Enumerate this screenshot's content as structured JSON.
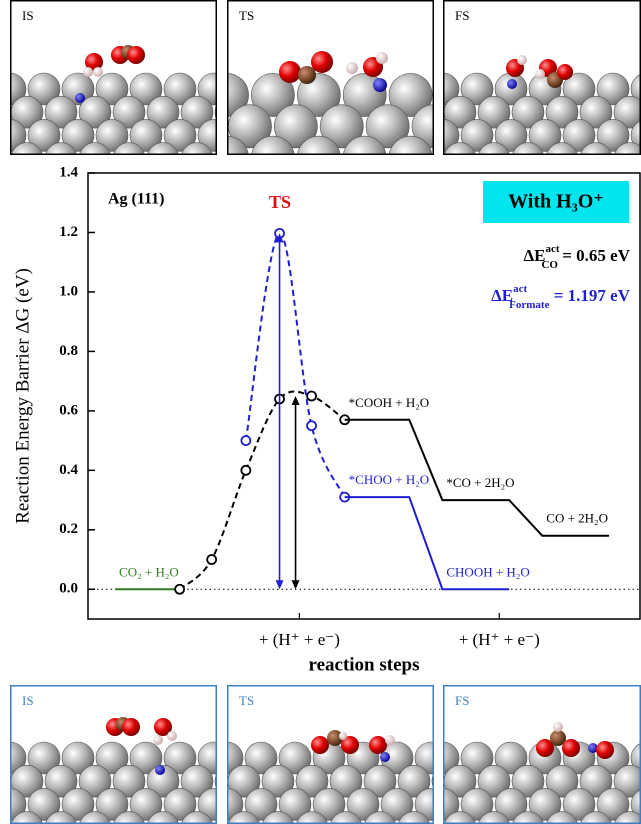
{
  "panels_top": {
    "labels": [
      "IS",
      "TS",
      "FS"
    ]
  },
  "panels_bottom": {
    "labels": [
      "IS",
      "TS",
      "FS"
    ]
  },
  "chart_data": {
    "type": "line",
    "xlabel": "reaction steps",
    "ylabel": "Reaction Energy Barrier ΔG (eV)",
    "xlim": [
      0,
      10
    ],
    "xticks": [
      {
        "value": 3.83,
        "label": "+ (H⁺ + e⁻)"
      },
      {
        "value": 7.45,
        "label": "+ (H⁺ + e⁻)"
      }
    ],
    "ylim": [
      -0.1,
      1.4
    ],
    "yticks": [
      {
        "value": 0,
        "label": "0.0"
      },
      {
        "value": 0.2,
        "label": "0.2"
      },
      {
        "value": 0.4,
        "label": "0.4"
      },
      {
        "value": 0.6,
        "label": "0.6"
      },
      {
        "value": 0.8,
        "label": "0.8"
      },
      {
        "value": 1,
        "label": "1.0"
      },
      {
        "value": 1.2,
        "label": "1.2"
      },
      {
        "value": 1.4,
        "label": "1.4"
      }
    ],
    "zero_line": true,
    "series": [
      {
        "color": "#2e7d1e",
        "style": "solid",
        "x": [
          0.49,
          1.66
        ],
        "values": [
          0,
          0
        ],
        "point_labels": [
          "CO₂ + H₂O",
          null
        ]
      },
      {
        "color": "#000000",
        "style": "dashed",
        "markers": true,
        "x": [
          1.66,
          2.24,
          2.86,
          3.47,
          4.05,
          4.65
        ],
        "values": [
          0,
          0.1,
          0.4,
          0.64,
          0.65,
          0.57
        ]
      },
      {
        "color": "#1f1fd0",
        "style": "dashed",
        "markers": true,
        "x": [
          2.86,
          3.47,
          4.05,
          4.65
        ],
        "values": [
          0.5,
          1.197,
          0.55,
          0.31
        ]
      },
      {
        "color": "#000000",
        "style": "solid",
        "x": [
          4.65,
          5.82,
          6.42,
          7.63,
          8.23,
          9.44
        ],
        "values": [
          0.57,
          0.57,
          0.3,
          0.3,
          0.18,
          0.18
        ],
        "point_labels": [
          "*COOH + H₂O",
          null,
          "*CO + 2H₂O",
          null,
          "CO + 2H₂O",
          null
        ]
      },
      {
        "color": "#1f1fd0",
        "style": "solid",
        "x": [
          4.65,
          5.82,
          6.42,
          7.63
        ],
        "values": [
          0.31,
          0.31,
          0,
          0
        ],
        "point_labels": [
          "*CHOO + H₂O",
          null,
          "CHOOH + H₂O",
          null
        ]
      }
    ],
    "arrows": [
      {
        "color": "#1f1fd0",
        "x": 3.47,
        "values": [
          0,
          1.197
        ]
      },
      {
        "color": "#000000",
        "x": 3.76,
        "values": [
          0,
          0.65
        ]
      }
    ],
    "annotations": {
      "surface": "Ag (111)",
      "ts": "TS",
      "condition": "With H₃O⁺"
    },
    "barriers": [
      {
        "symbol": "ΔE",
        "sup": "act",
        "sub": "CO",
        "text": " = 0.65 eV",
        "color": "#000000"
      },
      {
        "symbol": "ΔE",
        "sup": "act",
        "sub": "Formate",
        "text": " = 1.197 eV",
        "color": "#1f1fd0"
      }
    ]
  }
}
